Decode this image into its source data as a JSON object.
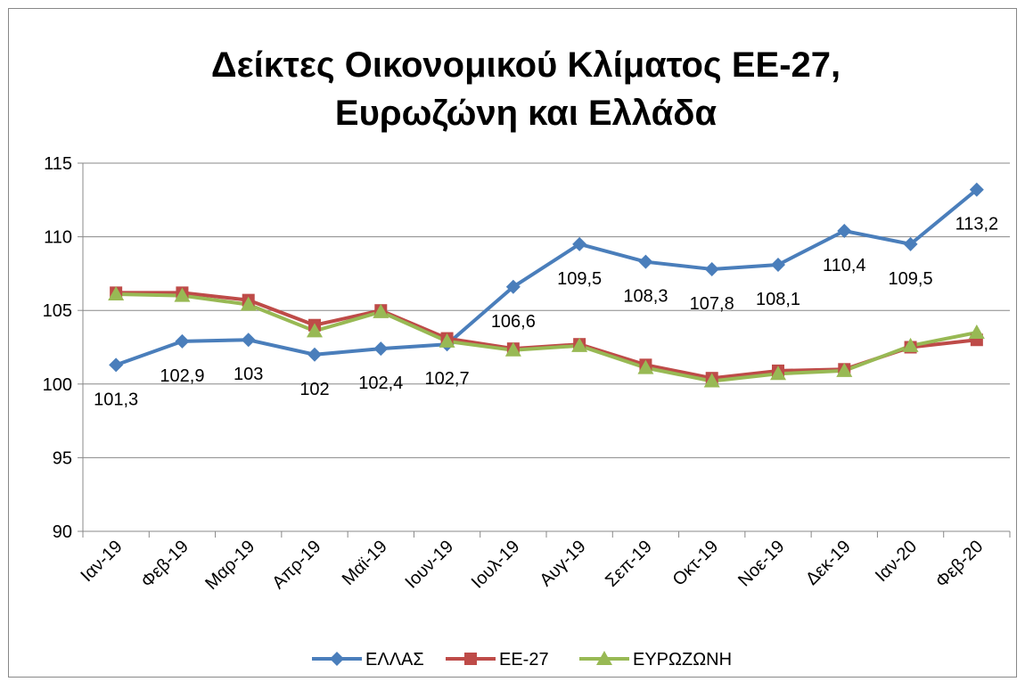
{
  "chart_data": {
    "type": "line",
    "title": [
      "Δείκτες Οικονομικού Κλίματος  ΕΕ-27,",
      "Ευρωζώνη και Ελλάδα"
    ],
    "categories": [
      "Ιαν-19",
      "Φεβ-19",
      "Μαρ-19",
      "Απρ-19",
      "Μαϊ-19",
      "Ιουν-19",
      "Ιουλ-19",
      "Αυγ-19",
      "Σεπ-19",
      "Οκτ-19",
      "Νοε-19",
      "Δεκ-19",
      "Ιαν-20",
      "Φεβ-20"
    ],
    "series": [
      {
        "name": "ΕΛΛΑΣ",
        "color": "#4a7ebb",
        "marker": "diamond",
        "values": [
          101.3,
          102.9,
          103,
          102,
          102.4,
          102.7,
          106.6,
          109.5,
          108.3,
          107.8,
          108.1,
          110.4,
          109.5,
          113.2
        ],
        "value_labels": [
          "101,3",
          "102,9",
          "103",
          "102",
          "102,4",
          "102,7",
          "106,6",
          "109,5",
          "108,3",
          "107,8",
          "108,1",
          "110,4",
          "109,5",
          "113,2"
        ]
      },
      {
        "name": "ΕΕ-27",
        "color": "#be4b48",
        "marker": "square",
        "values": [
          106.2,
          106.2,
          105.7,
          104.0,
          105.0,
          103.1,
          102.4,
          102.7,
          101.3,
          100.4,
          100.9,
          101.0,
          102.5,
          103.0
        ]
      },
      {
        "name": "ΕΥΡΩΖΩΝΗ",
        "color": "#98b954",
        "marker": "triangle",
        "values": [
          106.1,
          106.0,
          105.4,
          103.6,
          104.9,
          102.9,
          102.3,
          102.6,
          101.1,
          100.2,
          100.7,
          100.9,
          102.6,
          103.5
        ]
      }
    ],
    "ylim": [
      90,
      115
    ],
    "yticks": [
      90,
      95,
      100,
      105,
      110,
      115
    ],
    "grid": true,
    "legend": "bottom"
  }
}
